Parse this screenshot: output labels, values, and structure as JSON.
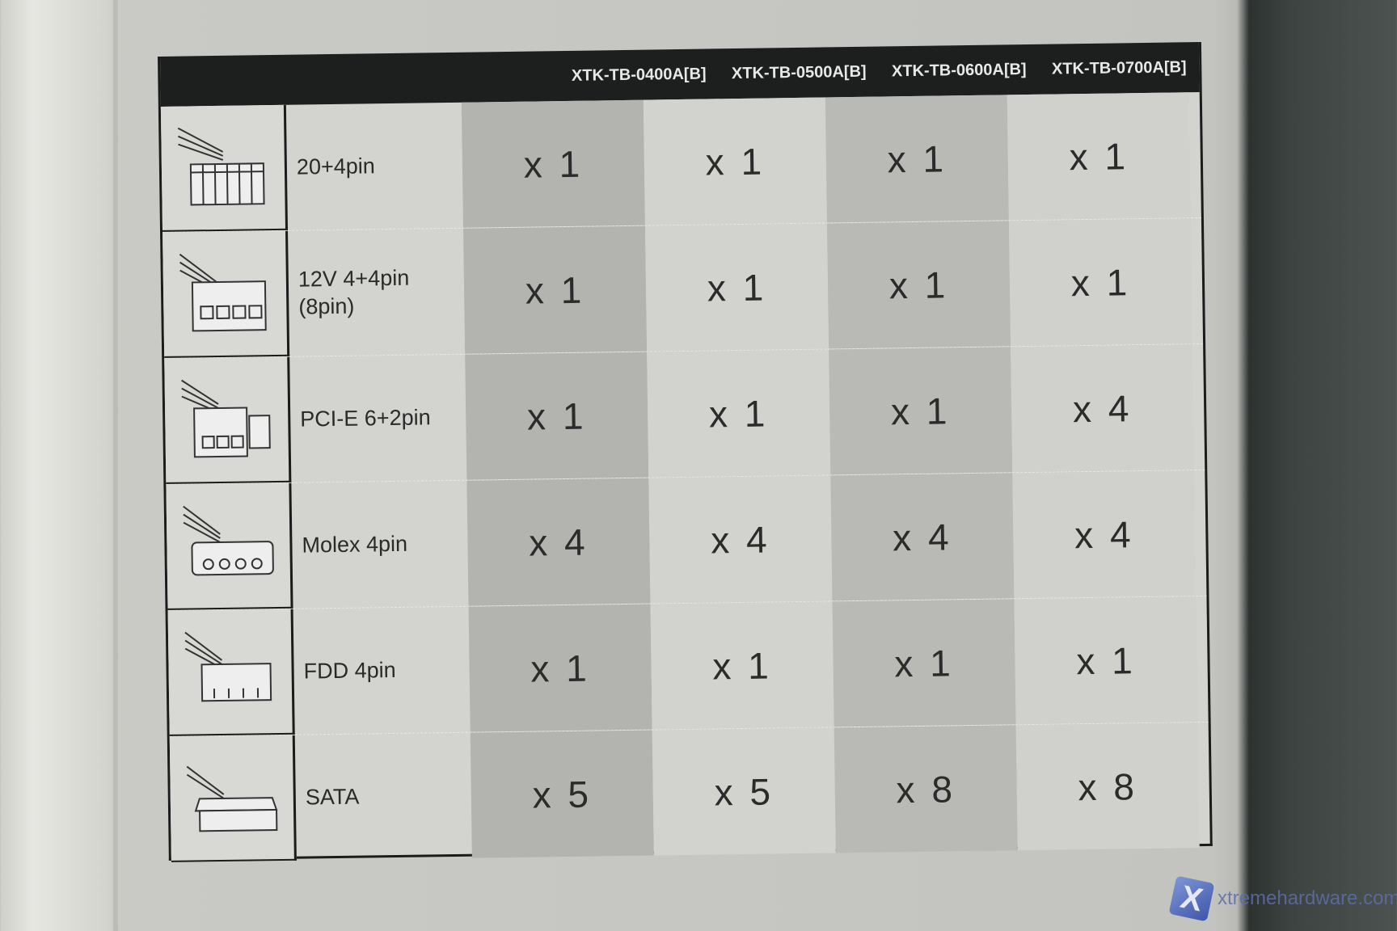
{
  "columns": [
    "XTK-TB-0400A[B]",
    "XTK-TB-0500A[B]",
    "XTK-TB-0600A[B]",
    "XTK-TB-0700A[B]"
  ],
  "rows": [
    {
      "label": "20+4pin",
      "icon": "atx-24pin-connector-icon",
      "values": [
        "x 1",
        "x 1",
        "x 1",
        "x 1"
      ]
    },
    {
      "label": "12V 4+4pin\n(8pin)",
      "icon": "eps-8pin-connector-icon",
      "values": [
        "x 1",
        "x 1",
        "x 1",
        "x 1"
      ]
    },
    {
      "label": "PCI-E 6+2pin",
      "icon": "pcie-connector-icon",
      "values": [
        "x 1",
        "x 1",
        "x 1",
        "x 4"
      ]
    },
    {
      "label": "Molex 4pin",
      "icon": "molex-connector-icon",
      "values": [
        "x 4",
        "x 4",
        "x 4",
        "x 4"
      ]
    },
    {
      "label": "FDD 4pin",
      "icon": "fdd-connector-icon",
      "values": [
        "x 1",
        "x 1",
        "x 1",
        "x 1"
      ]
    },
    {
      "label": "SATA",
      "icon": "sata-connector-icon",
      "values": [
        "x 5",
        "x 5",
        "x 8",
        "x 8"
      ]
    }
  ],
  "watermark": {
    "text": "xtremehardware.com",
    "logo": "X"
  }
}
